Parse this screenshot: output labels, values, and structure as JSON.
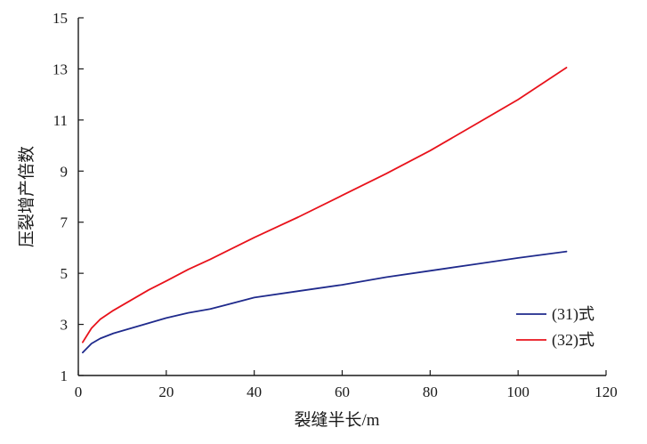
{
  "chart_data": {
    "type": "line",
    "xlabel": "裂缝半长/m",
    "ylabel": "压裂增产倍数",
    "xlim": [
      0,
      120
    ],
    "ylim": [
      1,
      15
    ],
    "xticks": [
      0,
      20,
      40,
      60,
      80,
      100,
      120
    ],
    "yticks": [
      1,
      3,
      5,
      7,
      9,
      11,
      13,
      15
    ],
    "grid": false,
    "legend_position": "bottom-right",
    "series": [
      {
        "name": "(31)式",
        "color": "#1f2a8c",
        "x": [
          1,
          3,
          5,
          8,
          12,
          16,
          20,
          25,
          30,
          40,
          50,
          60,
          70,
          80,
          90,
          100,
          111
        ],
        "y": [
          1.9,
          2.25,
          2.45,
          2.65,
          2.85,
          3.05,
          3.25,
          3.45,
          3.6,
          4.05,
          4.3,
          4.55,
          4.85,
          5.1,
          5.35,
          5.6,
          5.85
        ]
      },
      {
        "name": "(32)式",
        "color": "#e8121b",
        "x": [
          1,
          3,
          5,
          8,
          12,
          16,
          20,
          25,
          30,
          40,
          50,
          60,
          70,
          80,
          90,
          100,
          111
        ],
        "y": [
          2.3,
          2.85,
          3.2,
          3.55,
          3.95,
          4.35,
          4.7,
          5.15,
          5.55,
          6.4,
          7.2,
          8.05,
          8.9,
          9.8,
          10.8,
          11.8,
          13.05
        ]
      }
    ]
  }
}
